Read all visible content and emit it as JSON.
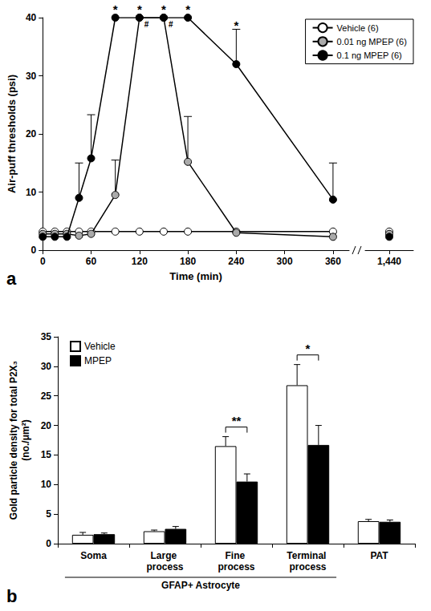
{
  "chart_data": [
    {
      "type": "line",
      "panel_label": "a",
      "x_label": "Time (min)",
      "y_label": "Air-puff thresholds (psi)",
      "x": [
        0,
        15,
        30,
        45,
        60,
        90,
        120,
        150,
        180,
        240,
        360,
        1440
      ],
      "x_segments": [
        {
          "xlim": [
            0,
            380
          ],
          "xticks": [
            0,
            60,
            120,
            180,
            240,
            300,
            360
          ]
        },
        {
          "xlim": [
            1420,
            1460
          ],
          "xticks": [
            1440
          ]
        }
      ],
      "ylim": [
        0,
        40
      ],
      "yticks": [
        0,
        10,
        20,
        30,
        40
      ],
      "grid": false,
      "legend": "upper right",
      "marker": "circle",
      "series": [
        {
          "name": "Vehicle (6)",
          "color": "#ffffff",
          "values": [
            3.2,
            3.2,
            3.2,
            3.2,
            3.2,
            3.2,
            3.2,
            3.2,
            3.2,
            3.2,
            3.2,
            3.2
          ]
        },
        {
          "name": "0.01 ng MPEP (6)",
          "color": "#aaaaaa",
          "values": [
            2.8,
            2.8,
            2.8,
            2.5,
            2.8,
            9.5,
            40,
            40,
            15.2,
            3.0,
            2.3,
            2.8
          ],
          "errors": [
            null,
            null,
            null,
            null,
            null,
            6,
            null,
            null,
            7.8,
            null,
            null,
            null
          ],
          "annotations": [
            null,
            null,
            null,
            null,
            null,
            null,
            "#",
            "#",
            null,
            null,
            null,
            null
          ]
        },
        {
          "name": "0.1 ng MPEP (6)",
          "color": "#000000",
          "values": [
            2.3,
            2.3,
            2.3,
            9,
            15.8,
            40,
            40,
            40,
            40,
            32,
            8.7,
            2.3
          ],
          "errors": [
            null,
            null,
            null,
            6,
            7.5,
            null,
            null,
            null,
            null,
            6,
            6.3,
            null
          ],
          "annotations": [
            null,
            null,
            null,
            null,
            null,
            "*",
            "*",
            "*",
            "*",
            "*",
            null,
            null
          ]
        }
      ]
    },
    {
      "type": "bar",
      "panel_label": "b",
      "y_label": "Gold particle density for total P2X₃\n(no./μm²)",
      "categories": [
        "Soma",
        "Large process",
        "Fine process",
        "Terminal process",
        "PAT"
      ],
      "group_label": {
        "text": "GFAP+ Astrocyte",
        "categories": [
          "Soma",
          "Large process",
          "Fine process",
          "Terminal process"
        ]
      },
      "ylim": [
        0,
        35
      ],
      "yticks": [
        0,
        5,
        10,
        15,
        20,
        25,
        30,
        35
      ],
      "grid": false,
      "legend": "upper left",
      "series": [
        {
          "name": "Vehicle",
          "color": "#ffffff",
          "values": [
            1.5,
            2.1,
            16.5,
            26.8,
            3.8
          ],
          "errors": [
            0.4,
            0.2,
            1.6,
            3.5,
            0.3
          ]
        },
        {
          "name": "MPEP",
          "color": "#000000",
          "values": [
            1.6,
            2.5,
            10.5,
            16.7,
            3.7
          ],
          "errors": [
            0.2,
            0.4,
            1.3,
            3.3,
            0.3
          ]
        }
      ],
      "significance": [
        {
          "category": "Fine process",
          "label": "**"
        },
        {
          "category": "Terminal process",
          "label": "*"
        }
      ]
    }
  ]
}
